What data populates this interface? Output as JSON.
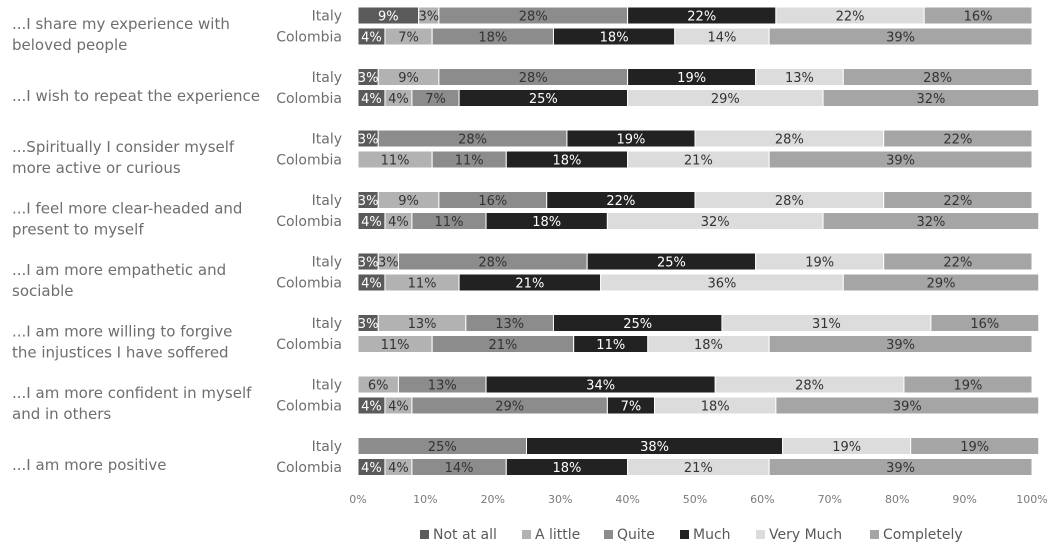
{
  "chart_data": {
    "type": "bar",
    "orientation": "horizontal",
    "stacked": "percent",
    "xlim": [
      0,
      100
    ],
    "x_ticks": [
      "0%",
      "10%",
      "20%",
      "30%",
      "40%",
      "50%",
      "60%",
      "70%",
      "80%",
      "90%",
      "100%"
    ],
    "legend_position": "bottom",
    "series": [
      {
        "name": "Not at all",
        "color": "#5a5a5a"
      },
      {
        "name": "A little",
        "color": "#b2b2b2"
      },
      {
        "name": "Quite",
        "color": "#8c8c8c"
      },
      {
        "name": "Much",
        "color": "#222222"
      },
      {
        "name": "Very Much",
        "color": "#dcdcdc"
      },
      {
        "name": "Completely",
        "color": "#a5a5a5"
      }
    ],
    "groups": [
      {
        "question": [
          "...I share my experience with",
          "beloved people"
        ],
        "rows": [
          {
            "country": "Italy",
            "values": [
              9,
              3,
              28,
              22,
              22,
              16
            ]
          },
          {
            "country": "Colombia",
            "values": [
              4,
              7,
              18,
              18,
              14,
              39
            ]
          }
        ]
      },
      {
        "question": [
          "...I wish to repeat the experience"
        ],
        "rows": [
          {
            "country": "Italy",
            "values": [
              3,
              9,
              28,
              19,
              13,
              28
            ]
          },
          {
            "country": "Colombia",
            "values": [
              4,
              4,
              7,
              25,
              29,
              32
            ]
          }
        ]
      },
      {
        "question": [
          "...Spiritually I consider myself",
          "more active or curious"
        ],
        "rows": [
          {
            "country": "Italy",
            "values": [
              3,
              0,
              28,
              19,
              28,
              22
            ]
          },
          {
            "country": "Colombia",
            "values": [
              0,
              11,
              11,
              18,
              21,
              39
            ]
          }
        ]
      },
      {
        "question": [
          "...I feel more clear-headed and",
          "present to myself"
        ],
        "rows": [
          {
            "country": "Italy",
            "values": [
              3,
              9,
              16,
              22,
              28,
              22
            ]
          },
          {
            "country": "Colombia",
            "values": [
              4,
              4,
              11,
              18,
              32,
              32
            ]
          }
        ]
      },
      {
        "question": [
          "...I am more empathetic and",
          "sociable"
        ],
        "rows": [
          {
            "country": "Italy",
            "values": [
              3,
              3,
              28,
              25,
              19,
              22
            ]
          },
          {
            "country": "Colombia",
            "values": [
              4,
              11,
              0,
              21,
              36,
              29
            ]
          }
        ]
      },
      {
        "question": [
          "...I am more willing to forgive",
          "the injustices I have soffered"
        ],
        "rows": [
          {
            "country": "Italy",
            "values": [
              3,
              13,
              13,
              25,
              31,
              16
            ]
          },
          {
            "country": "Colombia",
            "values": [
              0,
              11,
              21,
              11,
              18,
              39
            ]
          }
        ]
      },
      {
        "question": [
          "...I am more confident in myself",
          "and in others"
        ],
        "rows": [
          {
            "country": "Italy",
            "values": [
              0,
              6,
              13,
              34,
              28,
              19
            ]
          },
          {
            "country": "Colombia",
            "values": [
              4,
              4,
              29,
              7,
              18,
              39
            ]
          }
        ]
      },
      {
        "question": [
          "...I am more positive"
        ],
        "rows": [
          {
            "country": "Italy",
            "values": [
              0,
              0,
              25,
              38,
              19,
              19
            ]
          },
          {
            "country": "Colombia",
            "values": [
              4,
              4,
              14,
              18,
              21,
              39
            ]
          }
        ]
      }
    ]
  }
}
